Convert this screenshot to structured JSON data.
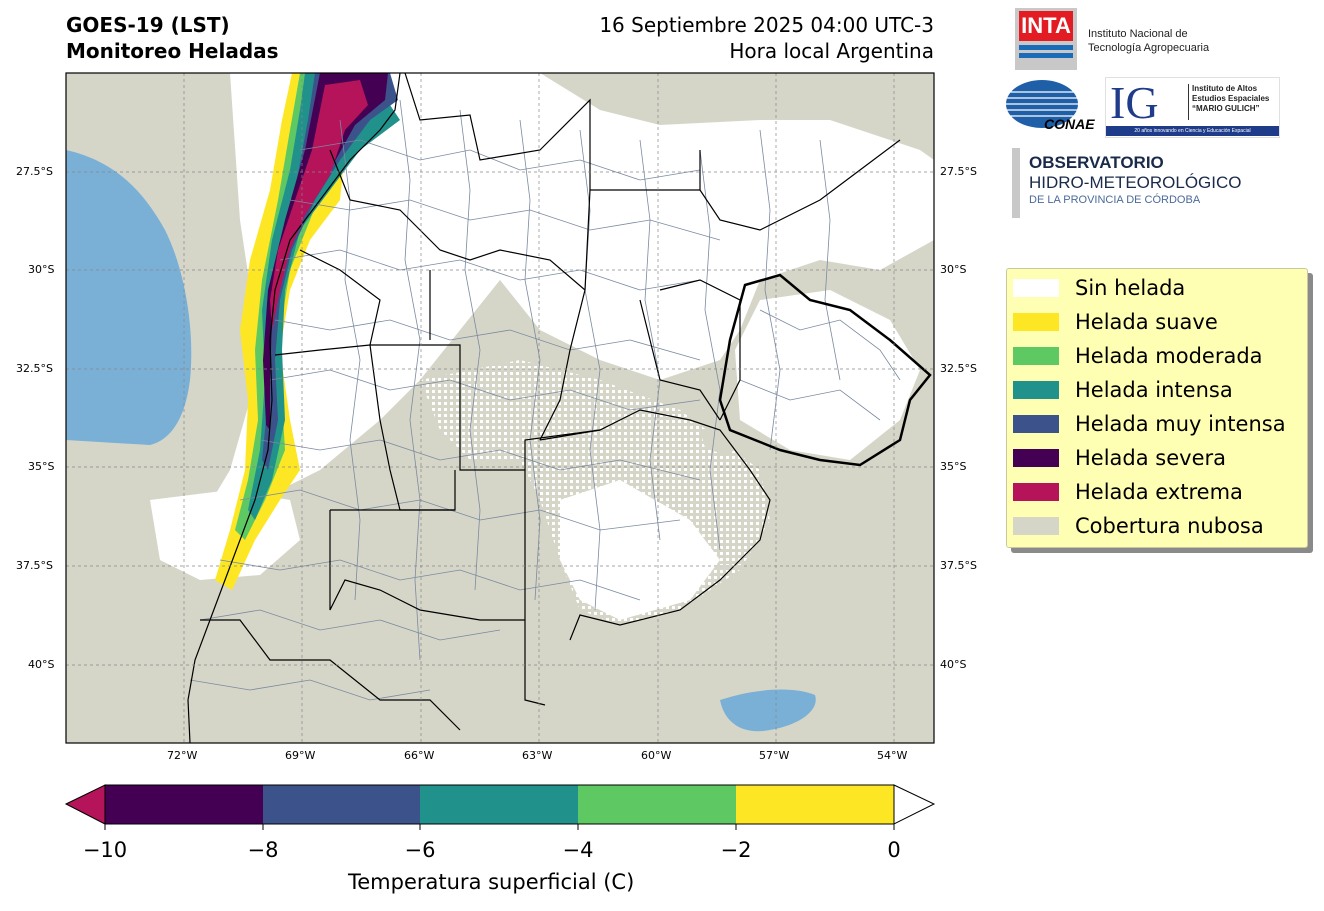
{
  "header": {
    "title_line1": "GOES-19 (LST)",
    "title_line2": "Monitoreo Heladas",
    "date_line1": "16 Septiembre 2025 04:00 UTC-3",
    "date_line2": "Hora local Argentina"
  },
  "map": {
    "lon_ticks": [
      "72°W",
      "69°W",
      "66°W",
      "63°W",
      "60°W",
      "57°W",
      "54°W"
    ],
    "lat_ticks": [
      "27.5°S",
      "30°S",
      "32.5°S",
      "35°S",
      "37.5°S",
      "40°S"
    ],
    "colors": {
      "land": "#ffffff",
      "cloud": "#d6d6c8",
      "water": "#7aafd6",
      "border": "#000000",
      "department": "#7a8aa0"
    }
  },
  "logos": {
    "inta_mark": "INTA",
    "inta_line1": "Instituto Nacional de",
    "inta_line2": "Tecnología Agropecuaria",
    "conae_mark": "CONAE",
    "ig_mark": "IG",
    "ig_line1": "Instituto de Altos",
    "ig_line2": "Estudios Espaciales",
    "ig_line3": "“MARIO GULICH”",
    "ig_tagline": "20 años innovando en Ciencia y Educación Espacial",
    "obs_line1": "OBSERVATORIO",
    "obs_line2": "HIDRO-METEOROLÓGICO",
    "obs_line3": "DE LA PROVINCIA DE CÓRDOBA"
  },
  "legend": [
    {
      "label": "Sin helada",
      "color": "#ffffff"
    },
    {
      "label": "Helada suave",
      "color": "#fde725"
    },
    {
      "label": "Helada moderada",
      "color": "#5ec962"
    },
    {
      "label": "Helada intensa",
      "color": "#21918c"
    },
    {
      "label": "Helada muy intensa",
      "color": "#3b528b"
    },
    {
      "label": "Helada severa",
      "color": "#440154"
    },
    {
      "label": "Helada extrema",
      "color": "#b5135a"
    },
    {
      "label": "Cobertura nubosa",
      "color": "#d6d6c8"
    }
  ],
  "colorbar": {
    "ticks": [
      "−10",
      "−8",
      "−6",
      "−4",
      "−2",
      "0"
    ],
    "colors": [
      "#440154",
      "#3b528b",
      "#21918c",
      "#5ec962",
      "#fde725"
    ],
    "under_color": "#b5135a",
    "over_color": "#ffffff",
    "title": "Temperatura superficial (C)"
  }
}
